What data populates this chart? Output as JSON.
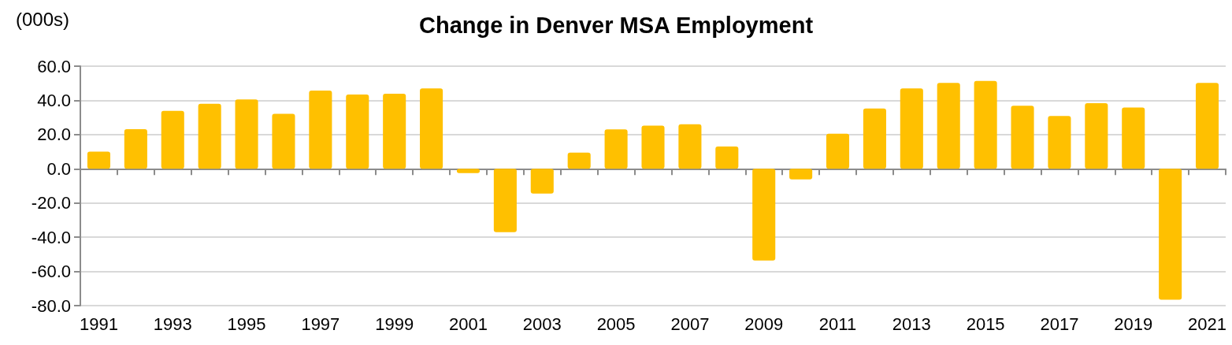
{
  "chart_data": {
    "type": "bar",
    "title": "Change in Denver MSA Employment",
    "ylabel": "(000s)",
    "categories": [
      "1991",
      null,
      "1993",
      null,
      "1995",
      null,
      "1997",
      null,
      "1999",
      null,
      "2001",
      null,
      "2003",
      null,
      "2005",
      null,
      "2007",
      null,
      "2009",
      null,
      "2011",
      null,
      "2013",
      null,
      "2015",
      null,
      "2017",
      null,
      "2019",
      null,
      "2021"
    ],
    "values": [
      10,
      23.2,
      33.9,
      38,
      40.6,
      32.1,
      45.7,
      43.4,
      43.9,
      47,
      -2.5,
      -37,
      -14.5,
      9.5,
      23,
      25.2,
      26,
      13,
      -53.6,
      -6.2,
      20.5,
      35.3,
      47,
      50.2,
      51.4,
      36.9,
      30.9,
      38.3,
      35.8,
      -76.6,
      50.2
    ],
    "color": "#ffc000",
    "ylim": [
      -80,
      60
    ],
    "yticks": [
      {
        "value": -80,
        "label": "-80.0"
      },
      {
        "value": -60,
        "label": "-60.0"
      },
      {
        "value": -40,
        "label": "-40.0"
      },
      {
        "value": -20,
        "label": "-20.0"
      },
      {
        "value": 0,
        "label": "0.0"
      },
      {
        "value": 20,
        "label": "20.0"
      },
      {
        "value": 40,
        "label": "40.0"
      },
      {
        "value": 60,
        "label": "60.0"
      }
    ],
    "grid": "y"
  }
}
